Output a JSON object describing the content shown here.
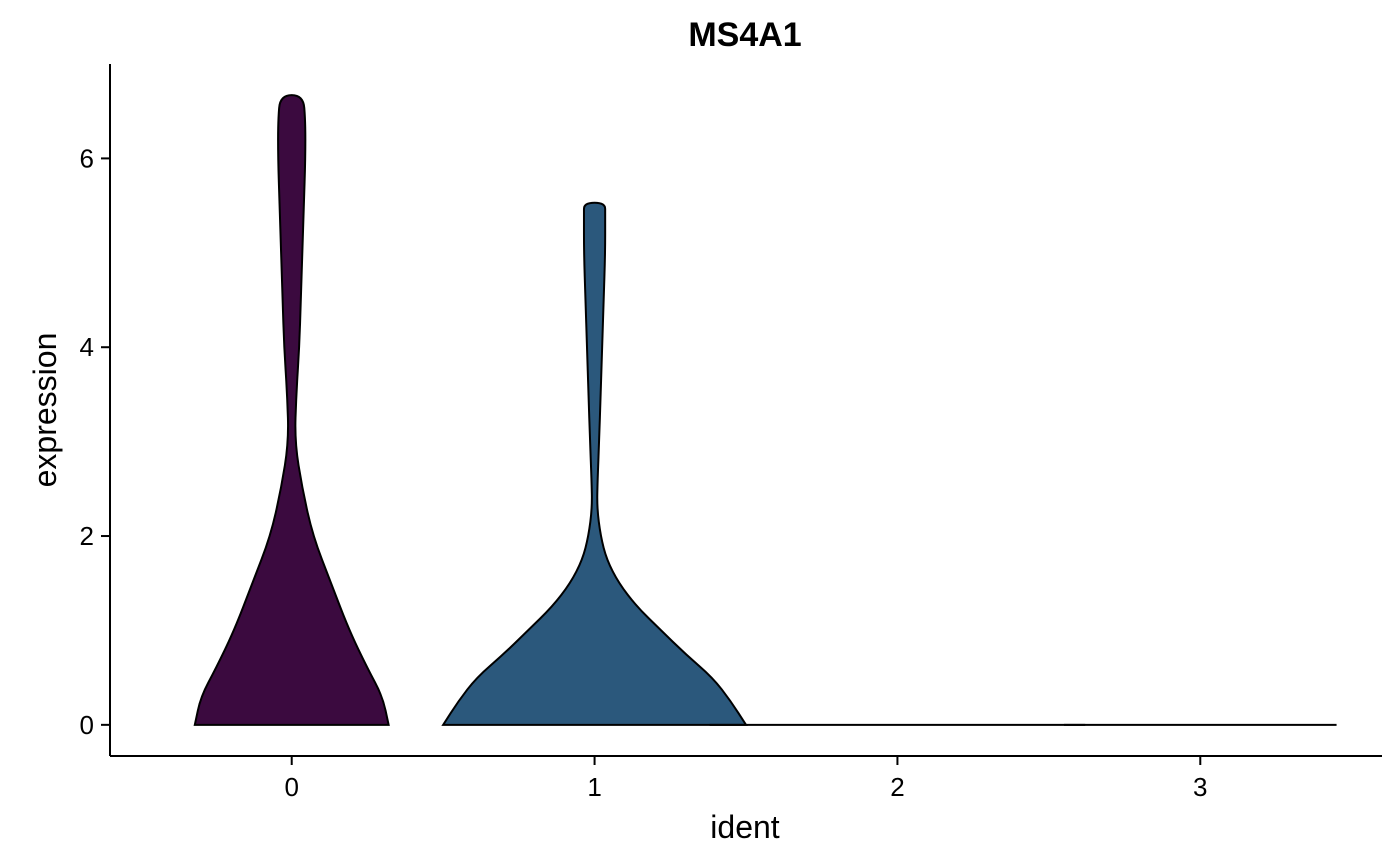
{
  "chart_data": {
    "type": "violin",
    "title": "MS4A1",
    "xlabel": "ident",
    "ylabel": "expression",
    "categories": [
      "0",
      "1",
      "2",
      "3"
    ],
    "y_ticks": [
      "0",
      "2",
      "4",
      "6"
    ],
    "ylim": [
      -0.33,
      7.0
    ],
    "xlim": [
      -0.6,
      3.6
    ],
    "grid": false,
    "legend": "none",
    "series": [
      {
        "category": "0",
        "color": "#3b0a3f",
        "profile": [
          [
            0.0,
            0.32
          ],
          [
            0.3,
            0.3
          ],
          [
            0.6,
            0.25
          ],
          [
            1.0,
            0.19
          ],
          [
            1.5,
            0.13
          ],
          [
            2.0,
            0.07
          ],
          [
            2.5,
            0.035
          ],
          [
            3.0,
            0.01
          ],
          [
            3.5,
            0.015
          ],
          [
            4.0,
            0.025
          ],
          [
            4.5,
            0.03
          ],
          [
            5.0,
            0.035
          ],
          [
            5.5,
            0.04
          ],
          [
            6.0,
            0.045
          ],
          [
            6.4,
            0.045
          ],
          [
            6.67,
            0.038
          ]
        ]
      },
      {
        "category": "1",
        "color": "#2b587c",
        "profile": [
          [
            0.0,
            0.5
          ],
          [
            0.25,
            0.45
          ],
          [
            0.5,
            0.39
          ],
          [
            0.75,
            0.3
          ],
          [
            1.0,
            0.22
          ],
          [
            1.25,
            0.14
          ],
          [
            1.5,
            0.08
          ],
          [
            1.75,
            0.04
          ],
          [
            2.0,
            0.02
          ],
          [
            2.3,
            0.008
          ],
          [
            2.6,
            0.01
          ],
          [
            3.0,
            0.015
          ],
          [
            3.5,
            0.02
          ],
          [
            4.0,
            0.025
          ],
          [
            4.5,
            0.03
          ],
          [
            5.0,
            0.035
          ],
          [
            5.4,
            0.035
          ],
          [
            5.53,
            0.035
          ]
        ]
      },
      {
        "category": "2",
        "color": "#1f8c86",
        "profile": [
          [
            0.0,
            0.62
          ]
        ]
      },
      {
        "category": "3",
        "color": "#9fd93a",
        "profile": [
          [
            0.0,
            0.45
          ]
        ]
      }
    ]
  }
}
